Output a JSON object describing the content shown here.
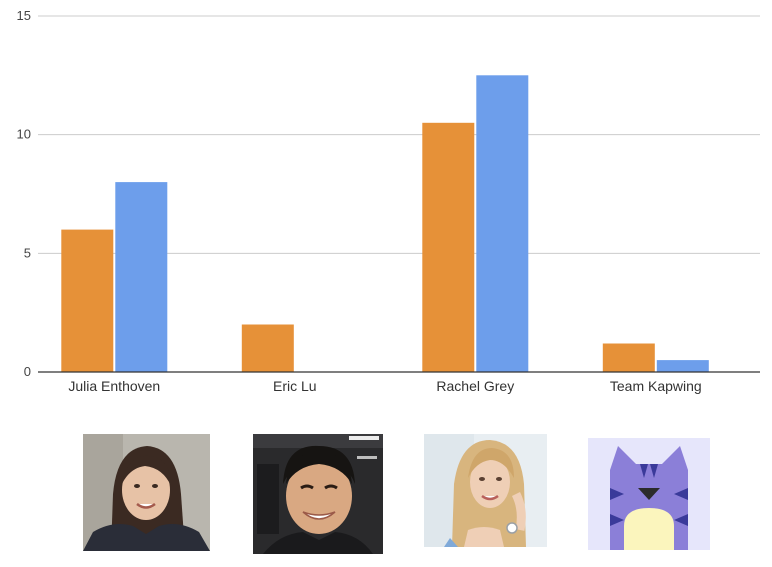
{
  "chart_data": {
    "type": "bar",
    "title": "",
    "xlabel": "",
    "ylabel": "",
    "ylim": [
      0,
      15
    ],
    "yticks": [
      "0",
      "5",
      "10",
      "15"
    ],
    "grid": true,
    "legend": "none",
    "categories": [
      "Julia Enthoven",
      "Eric Lu",
      "Rachel Grey",
      "Team Kapwing"
    ],
    "series": [
      {
        "color": "#e69138",
        "values": [
          6,
          2,
          10.5,
          1.2
        ]
      },
      {
        "color": "#6d9eeb",
        "values": [
          8,
          0,
          12.5,
          0.5
        ]
      }
    ]
  },
  "avatars": [
    {
      "icon": "person-photo"
    },
    {
      "icon": "person-photo"
    },
    {
      "icon": "person-photo"
    },
    {
      "icon": "cat-logo-icon"
    }
  ]
}
